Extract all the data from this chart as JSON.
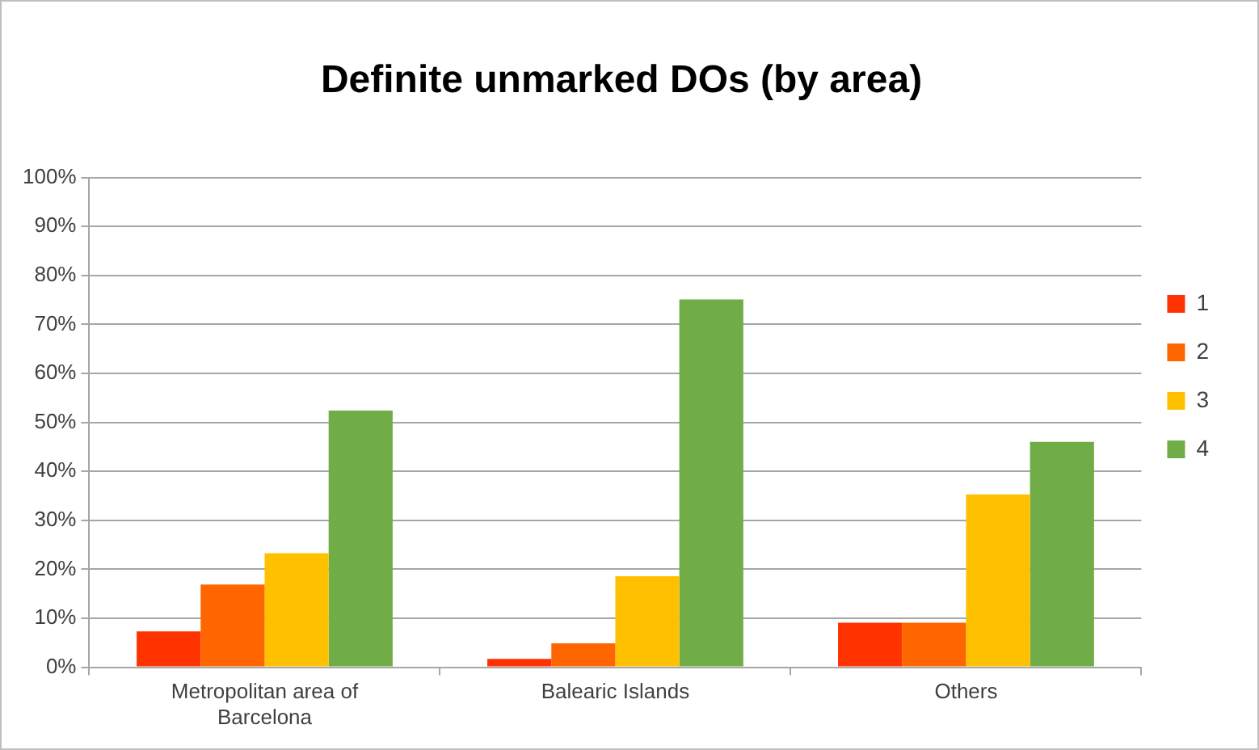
{
  "chart_data": {
    "type": "bar",
    "title": "Definite unmarked DOs (by area)",
    "categories": [
      "Metropolitan area of Barcelona",
      "Balearic Islands",
      "Others"
    ],
    "series": [
      {
        "name": "1",
        "color": "#ff3300",
        "values": [
          7.3,
          1.7,
          9.1
        ]
      },
      {
        "name": "2",
        "color": "#ff6600",
        "values": [
          16.9,
          4.9,
          9.1
        ]
      },
      {
        "name": "3",
        "color": "#ffc000",
        "values": [
          23.3,
          18.6,
          35.3
        ]
      },
      {
        "name": "4",
        "color": "#70ad47",
        "values": [
          52.4,
          75.1,
          46.0
        ]
      }
    ],
    "ylim": [
      0,
      100
    ],
    "yticks": [
      {
        "value": 0,
        "label": "0%"
      },
      {
        "value": 10,
        "label": "10%"
      },
      {
        "value": 20,
        "label": "20%"
      },
      {
        "value": 30,
        "label": "30%"
      },
      {
        "value": 40,
        "label": "40%"
      },
      {
        "value": 50,
        "label": "50%"
      },
      {
        "value": 60,
        "label": "60%"
      },
      {
        "value": 70,
        "label": "70%"
      },
      {
        "value": 80,
        "label": "80%"
      },
      {
        "value": 90,
        "label": "90%"
      },
      {
        "value": 100,
        "label": "100%"
      }
    ],
    "grid": "y",
    "legend": "right"
  }
}
